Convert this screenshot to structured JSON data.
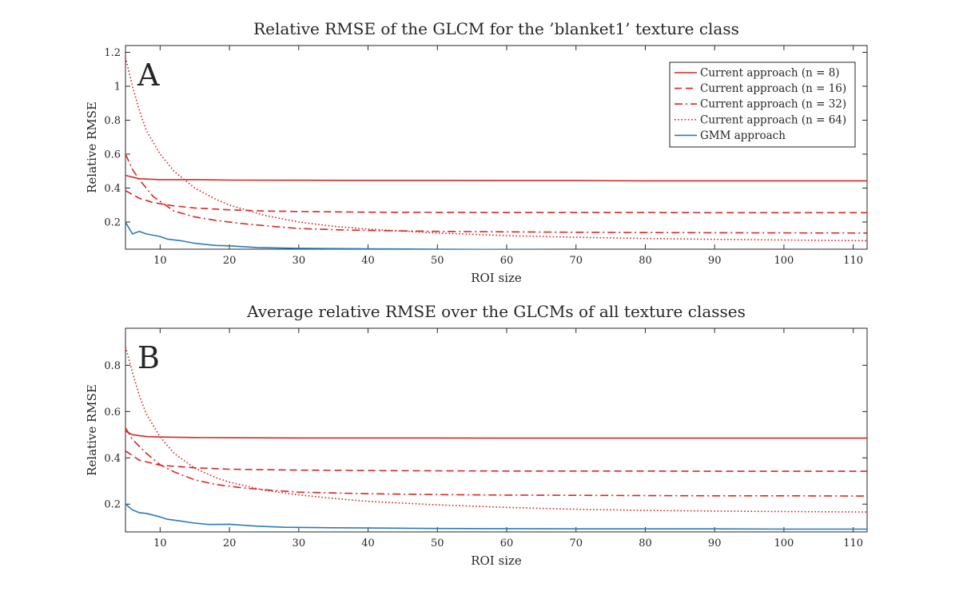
{
  "chart_data": [
    {
      "type": "line",
      "panel_label": "A",
      "title": "Relative RMSE of the GLCM for the ’blanket1’ texture class",
      "xlabel": "ROI size",
      "ylabel": "Relative RMSE",
      "xlim": [
        5,
        112
      ],
      "ylim": [
        0.04,
        1.24
      ],
      "xticks": [
        10,
        20,
        30,
        40,
        50,
        60,
        70,
        80,
        90,
        100,
        110
      ],
      "yticks": [
        0.2,
        0.4,
        0.6,
        0.8,
        1,
        1.2
      ],
      "ytick_labels": [
        "0.2",
        "0.4",
        "0.6",
        "0.8",
        "1",
        "1.2"
      ],
      "grid": false,
      "legend_position": "top-right",
      "series": [
        {
          "name": "Current approach (n = 8)",
          "color": "#d62728",
          "dash": "solid",
          "x": [
            5,
            7,
            10,
            15,
            20,
            30,
            40,
            50,
            60,
            70,
            80,
            90,
            100,
            112
          ],
          "y": [
            0.475,
            0.455,
            0.45,
            0.45,
            0.447,
            0.446,
            0.445,
            0.445,
            0.444,
            0.444,
            0.443,
            0.443,
            0.443,
            0.443
          ]
        },
        {
          "name": "Current approach (n = 16)",
          "color": "#d62728",
          "dash": "dashed",
          "x": [
            5,
            7,
            9,
            12,
            15,
            20,
            25,
            30,
            40,
            50,
            60,
            70,
            80,
            90,
            100,
            112
          ],
          "y": [
            0.385,
            0.34,
            0.315,
            0.295,
            0.283,
            0.272,
            0.265,
            0.262,
            0.258,
            0.257,
            0.256,
            0.256,
            0.256,
            0.255,
            0.255,
            0.255
          ]
        },
        {
          "name": "Current approach (n = 32)",
          "color": "#d62728",
          "dash": "dashdot",
          "x": [
            5,
            6,
            7,
            9,
            12,
            15,
            18,
            22,
            26,
            30,
            35,
            40,
            50,
            60,
            70,
            80,
            90,
            100,
            112
          ],
          "y": [
            0.6,
            0.51,
            0.45,
            0.35,
            0.265,
            0.23,
            0.21,
            0.19,
            0.175,
            0.162,
            0.155,
            0.15,
            0.145,
            0.142,
            0.14,
            0.138,
            0.137,
            0.136,
            0.135
          ]
        },
        {
          "name": "Current approach (n = 64)",
          "color": "#d62728",
          "dash": "dotted",
          "x": [
            5,
            6,
            7,
            8,
            10,
            12,
            15,
            18,
            20,
            25,
            30,
            35,
            40,
            50,
            60,
            70,
            80,
            90,
            100,
            112
          ],
          "y": [
            1.17,
            1.0,
            0.86,
            0.74,
            0.6,
            0.5,
            0.4,
            0.335,
            0.3,
            0.24,
            0.2,
            0.175,
            0.158,
            0.135,
            0.12,
            0.11,
            0.103,
            0.098,
            0.094,
            0.09
          ]
        },
        {
          "name": "GMM approach",
          "color": "#2b7bb9",
          "dash": "solid",
          "x": [
            5,
            6,
            7,
            8,
            10,
            11,
            13,
            15,
            18,
            20,
            24,
            30,
            40,
            50,
            60,
            70,
            80,
            90,
            100,
            112
          ],
          "y": [
            0.2,
            0.13,
            0.145,
            0.13,
            0.115,
            0.1,
            0.09,
            0.075,
            0.062,
            0.06,
            0.05,
            0.045,
            0.042,
            0.04,
            0.038,
            0.036,
            0.035,
            0.034,
            0.033,
            0.033
          ]
        }
      ]
    },
    {
      "type": "line",
      "panel_label": "B",
      "title": "Average relative RMSE over the GLCMs of all texture classes",
      "xlabel": "ROI size",
      "ylabel": "Relative RMSE",
      "xlim": [
        5,
        112
      ],
      "ylim": [
        0.08,
        0.96
      ],
      "xticks": [
        10,
        20,
        30,
        40,
        50,
        60,
        70,
        80,
        90,
        100,
        110
      ],
      "yticks": [
        0.2,
        0.4,
        0.6,
        0.8
      ],
      "ytick_labels": [
        "0.2",
        "0.4",
        "0.6",
        "0.8"
      ],
      "grid": false,
      "series": [
        {
          "name": "Current approach (n = 8)",
          "color": "#d62728",
          "dash": "solid",
          "x": [
            5,
            6,
            8,
            10,
            15,
            20,
            30,
            40,
            50,
            60,
            70,
            80,
            90,
            100,
            112
          ],
          "y": [
            0.515,
            0.5,
            0.492,
            0.49,
            0.488,
            0.487,
            0.486,
            0.486,
            0.486,
            0.485,
            0.485,
            0.485,
            0.485,
            0.485,
            0.485
          ]
        },
        {
          "name": "Current approach (n = 16)",
          "color": "#d62728",
          "dash": "dashed",
          "x": [
            5,
            7,
            10,
            15,
            20,
            30,
            40,
            50,
            60,
            70,
            80,
            90,
            100,
            112
          ],
          "y": [
            0.43,
            0.39,
            0.368,
            0.357,
            0.351,
            0.347,
            0.345,
            0.344,
            0.343,
            0.343,
            0.343,
            0.342,
            0.342,
            0.342
          ]
        },
        {
          "name": "Current approach (n = 32)",
          "color": "#d62728",
          "dash": "dashdot",
          "x": [
            5,
            6,
            8,
            10,
            12,
            15,
            18,
            22,
            26,
            30,
            40,
            50,
            60,
            70,
            80,
            90,
            100,
            112
          ],
          "y": [
            0.53,
            0.48,
            0.42,
            0.37,
            0.34,
            0.305,
            0.285,
            0.27,
            0.26,
            0.252,
            0.245,
            0.241,
            0.239,
            0.238,
            0.237,
            0.236,
            0.236,
            0.235
          ]
        },
        {
          "name": "Current approach (n = 64)",
          "color": "#d62728",
          "dash": "dotted",
          "x": [
            5,
            6,
            7,
            8,
            10,
            12,
            15,
            18,
            20,
            25,
            30,
            35,
            40,
            50,
            60,
            70,
            80,
            90,
            100,
            112
          ],
          "y": [
            0.88,
            0.77,
            0.67,
            0.59,
            0.49,
            0.42,
            0.355,
            0.315,
            0.295,
            0.26,
            0.24,
            0.225,
            0.212,
            0.197,
            0.186,
            0.178,
            0.173,
            0.17,
            0.168,
            0.166
          ]
        },
        {
          "name": "GMM approach",
          "color": "#2b7bb9",
          "dash": "solid",
          "x": [
            5,
            6,
            7,
            8,
            10,
            11,
            13,
            15,
            17,
            20,
            24,
            28,
            35,
            40,
            50,
            60,
            70,
            80,
            90,
            100,
            112
          ],
          "y": [
            0.2,
            0.175,
            0.163,
            0.16,
            0.145,
            0.135,
            0.127,
            0.118,
            0.112,
            0.113,
            0.105,
            0.1,
            0.098,
            0.097,
            0.095,
            0.094,
            0.093,
            0.093,
            0.093,
            0.092,
            0.092
          ]
        }
      ]
    }
  ]
}
